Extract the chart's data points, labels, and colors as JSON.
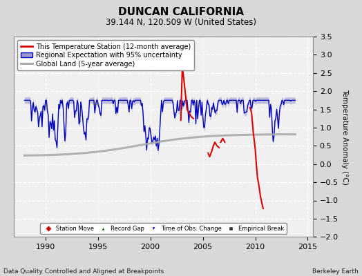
{
  "title": "DUNCAN CALIFORNIA",
  "subtitle": "39.144 N, 120.509 W (United States)",
  "ylabel": "Temperature Anomaly (°C)",
  "footer_left": "Data Quality Controlled and Aligned at Breakpoints",
  "footer_right": "Berkeley Earth",
  "xlim": [
    1987.0,
    2015.5
  ],
  "ylim": [
    -2.0,
    3.5
  ],
  "yticks": [
    -2,
    -1.5,
    -1,
    -0.5,
    0,
    0.5,
    1,
    1.5,
    2,
    2.5,
    3,
    3.5
  ],
  "xticks": [
    1990,
    1995,
    2000,
    2005,
    2010,
    2015
  ],
  "bg_color": "#d8d8d8",
  "plot_bg_color": "#f0f0f0",
  "grid_color": "#ffffff",
  "blue_line_color": "#0000bb",
  "blue_fill_color": "#9999cc",
  "red_line_color": "#dd0000",
  "gray_line_color": "#aaaaaa",
  "legend_box_color": "#ffffff",
  "title_fontsize": 11,
  "subtitle_fontsize": 8.5,
  "tick_fontsize": 8,
  "legend_fontsize": 7,
  "footer_fontsize": 6.5
}
